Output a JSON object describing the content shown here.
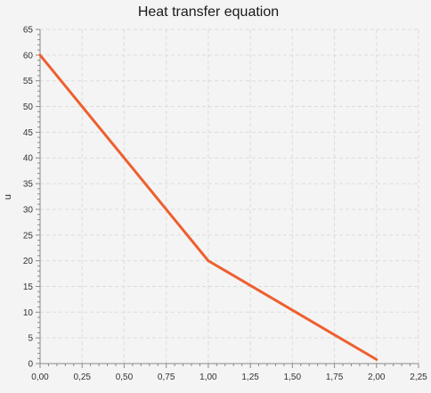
{
  "chart_data": {
    "type": "line",
    "title": "Heat transfer equation",
    "xlabel": "",
    "ylabel": "u",
    "xlim": [
      0,
      2.25
    ],
    "ylim": [
      0,
      65
    ],
    "x_ticks": [
      0,
      0.25,
      0.5,
      0.75,
      1.0,
      1.25,
      1.5,
      1.75,
      2.0,
      2.25
    ],
    "x_tick_labels": [
      "0,00",
      "0,25",
      "0,50",
      "0,75",
      "1,00",
      "1,25",
      "1,50",
      "1,75",
      "2,00",
      "2,25"
    ],
    "y_ticks": [
      0,
      5,
      10,
      15,
      20,
      25,
      30,
      35,
      40,
      45,
      50,
      55,
      60,
      65
    ],
    "y_tick_labels": [
      "0",
      "5",
      "10",
      "15",
      "20",
      "25",
      "30",
      "35",
      "40",
      "45",
      "50",
      "55",
      "60",
      "65"
    ],
    "grid": true,
    "series": [
      {
        "x": [
          0.0,
          1.0,
          2.0
        ],
        "y": [
          60,
          20,
          0.8
        ],
        "color": "#ee5f2f"
      }
    ]
  }
}
